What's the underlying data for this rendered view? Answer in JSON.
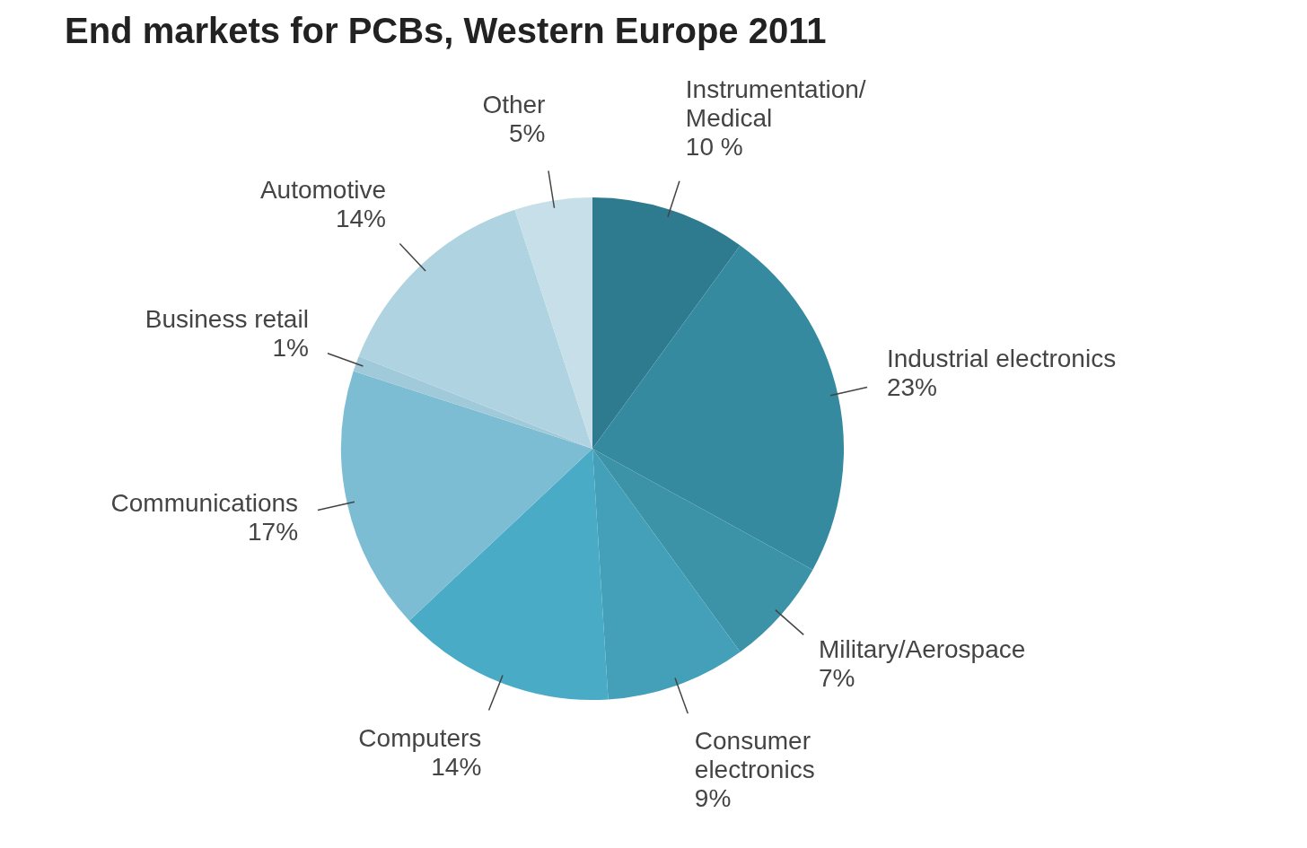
{
  "chart_data": {
    "type": "pie",
    "title": "End markets for PCBs, Western Europe 2011",
    "categories": [
      "Instrumentation/Medical",
      "Industrial electronics",
      "Military/Aerospace",
      "Consumer electronics",
      "Computers",
      "Communications",
      "Business retail",
      "Automotive",
      "Other"
    ],
    "values": [
      10,
      23,
      7,
      9,
      14,
      17,
      1,
      14,
      5
    ],
    "value_labels": [
      "10 %",
      "23%",
      "7%",
      "9%",
      "14%",
      "17%",
      "1%",
      "14%",
      "5%"
    ],
    "colors": [
      "#2e7b8f",
      "#368aa0",
      "#3c93a8",
      "#44a0b8",
      "#4aabc6",
      "#7dbdd3",
      "#a0cad9",
      "#b0d3e1",
      "#c6dfe8"
    ],
    "legend": false
  }
}
